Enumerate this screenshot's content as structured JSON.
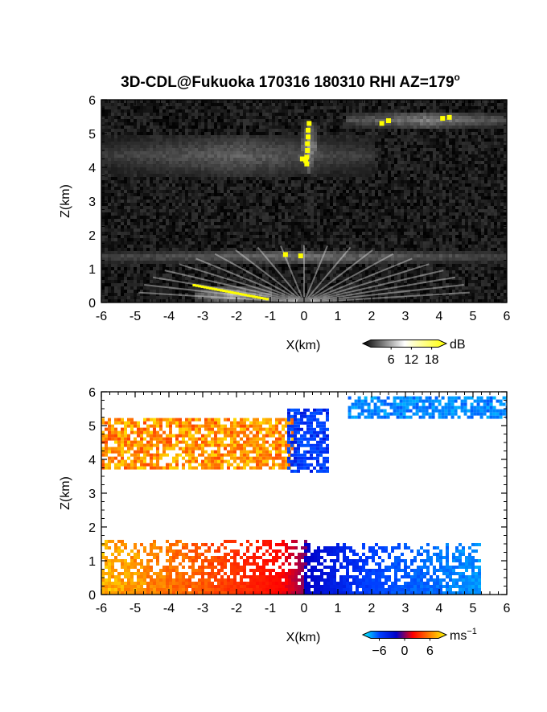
{
  "chart_data": [
    {
      "type": "heatmap",
      "title": "3D-CDL@Fukuoka 170316 180310 RHI AZ=179",
      "title_superscript": "o",
      "xlabel": "X(km)",
      "ylabel": "Z(km)",
      "xlim": [
        -6,
        6
      ],
      "ylim": [
        0,
        6
      ],
      "x_ticks": [
        "-6",
        "-5",
        "-4",
        "-3",
        "-2",
        "-1",
        "0",
        "1",
        "2",
        "3",
        "4",
        "5",
        "6"
      ],
      "y_ticks": [
        "0",
        "1",
        "2",
        "3",
        "4",
        "5",
        "6"
      ],
      "grid": false,
      "colorbar": {
        "unit": "dB",
        "ticks": [
          "6",
          "12",
          "18"
        ],
        "range": [
          0,
          20
        ],
        "colors": [
          "#000000",
          "#ffffff",
          "#ffff00"
        ]
      },
      "features": [
        {
          "layer": "cloud base",
          "x_range": [
            -6,
            6
          ],
          "z_range": [
            1.2,
            1.6
          ],
          "peak_dB": 14
        },
        {
          "layer": "mid cloud",
          "x_range": [
            -6,
            2
          ],
          "z_range": [
            3.8,
            5.0
          ],
          "peak_dB": 12
        },
        {
          "layer": "upper cloud",
          "x_range": [
            1.2,
            6
          ],
          "z_range": [
            5.2,
            5.7
          ],
          "peak_dB": 16
        },
        {
          "layer": "strong echo column",
          "x_range": [
            -0.1,
            0.3
          ],
          "z_range": [
            3.9,
            5.4
          ],
          "peak_dB": 20
        },
        {
          "layer": "low-angle ground clutter",
          "x_range": [
            -3.3,
            -1
          ],
          "z_range": [
            0,
            0.5
          ],
          "peak_dB": 20
        }
      ]
    },
    {
      "type": "heatmap",
      "xlabel": "X(km)",
      "ylabel": "Z(km)",
      "xlim": [
        -6,
        6
      ],
      "ylim": [
        0,
        6
      ],
      "x_ticks": [
        "-6",
        "-5",
        "-4",
        "-3",
        "-2",
        "-1",
        "0",
        "1",
        "2",
        "3",
        "4",
        "5",
        "6"
      ],
      "y_ticks": [
        "0",
        "1",
        "2",
        "3",
        "4",
        "5",
        "6"
      ],
      "grid": false,
      "colorbar": {
        "unit": "ms",
        "unit_superscript": "−1",
        "ticks": [
          "−6",
          "0",
          "6"
        ],
        "range": [
          -8,
          8
        ],
        "colors": [
          "#00ffff",
          "#0040ff",
          "#0000c8",
          "#ff0000",
          "#ff8000",
          "#ffff00"
        ]
      },
      "features": [
        {
          "region": "low layer west",
          "x_range": [
            -6,
            0
          ],
          "z_range": [
            0,
            1.6
          ],
          "velocity_ms": [
            0,
            6
          ]
        },
        {
          "region": "low layer east",
          "x_range": [
            0,
            5.2
          ],
          "z_range": [
            0,
            1.5
          ],
          "velocity_ms": [
            -6,
            -0.5
          ]
        },
        {
          "region": "mid layer west",
          "x_range": [
            -6,
            -0.3
          ],
          "z_range": [
            3.7,
            5.2
          ],
          "velocity_ms": [
            2,
            6
          ]
        },
        {
          "region": "mid layer core",
          "x_range": [
            -0.5,
            0.7
          ],
          "z_range": [
            3.6,
            5.5
          ],
          "velocity_ms": [
            -3,
            -1
          ]
        },
        {
          "region": "upper layer east",
          "x_range": [
            1.3,
            6
          ],
          "z_range": [
            5.2,
            5.8
          ],
          "velocity_ms": [
            -6,
            -3
          ]
        }
      ]
    }
  ]
}
